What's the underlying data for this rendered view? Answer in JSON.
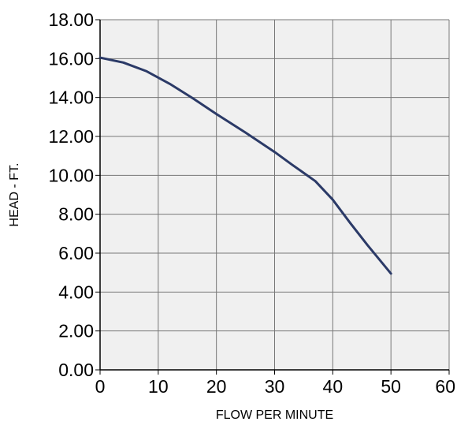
{
  "chart_data": {
    "type": "line",
    "title": "",
    "xlabel": "FLOW PER MINUTE",
    "ylabel": "HEAD - FT.",
    "xlim": [
      0,
      60
    ],
    "ylim": [
      0,
      18
    ],
    "x_ticks": [
      "0",
      "10",
      "20",
      "30",
      "40",
      "50",
      "60"
    ],
    "y_ticks": [
      "0.00",
      "2.00",
      "4.00",
      "6.00",
      "8.00",
      "10.00",
      "12.00",
      "14.00",
      "16.00",
      "18.00"
    ],
    "grid": true,
    "legend": "none",
    "series": [
      {
        "color": "#2b3a67",
        "x": [
          0,
          4,
          8,
          12,
          16,
          20,
          25,
          30,
          33,
          37,
          40,
          43,
          46,
          50
        ],
        "y": [
          16.05,
          15.8,
          15.35,
          14.7,
          13.95,
          13.15,
          12.2,
          11.2,
          10.55,
          9.7,
          8.75,
          7.55,
          6.4,
          4.95
        ]
      }
    ],
    "colors": {
      "plot_background": "#f0f0f0",
      "grid": "#777777",
      "axis": "#000000",
      "line": "#2b3a67"
    }
  }
}
